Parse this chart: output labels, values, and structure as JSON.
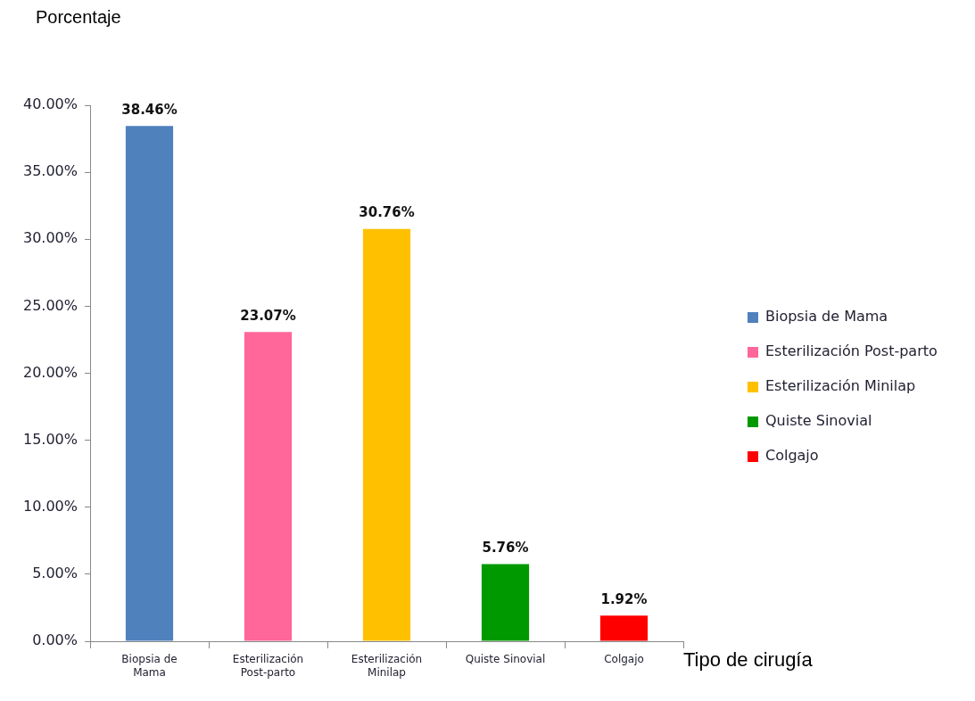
{
  "chart_data": {
    "type": "bar",
    "ylabel": "Porcentaje",
    "xlabel": "Tipo de cirugía",
    "categories": [
      "Biopsia de Mama",
      "Esterilización Post-parto",
      "Esterilización Minilap",
      "Quiste Sinovial",
      "Colgajo"
    ],
    "series": [
      {
        "name": "Biopsia de Mama",
        "color": "#4f81bd",
        "values": [
          38.46,
          null,
          null,
          null,
          null
        ],
        "value_labels": [
          "38.46%",
          null,
          null,
          null,
          null
        ]
      },
      {
        "name": "Esterilización Post-parto",
        "color": "#ff6699",
        "values": [
          null,
          23.07,
          null,
          null,
          null
        ],
        "value_labels": [
          null,
          "23.07%",
          null,
          null,
          null
        ]
      },
      {
        "name": "Esterilización Minilap",
        "color": "#ffc000",
        "values": [
          null,
          null,
          30.76,
          null,
          null
        ],
        "value_labels": [
          null,
          null,
          "30.76%",
          null,
          null
        ]
      },
      {
        "name": "Quiste Sinovial",
        "color": "#009900",
        "values": [
          null,
          null,
          null,
          5.76,
          null
        ],
        "value_labels": [
          null,
          null,
          null,
          "5.76%",
          null
        ]
      },
      {
        "name": "Colgajo",
        "color": "#ff0000",
        "values": [
          null,
          null,
          null,
          null,
          1.92
        ],
        "value_labels": [
          null,
          null,
          null,
          null,
          "1.92%"
        ]
      }
    ],
    "ylim": [
      0,
      40
    ],
    "yticks": [
      {
        "value": 0,
        "label": "0.00%"
      },
      {
        "value": 5,
        "label": "5.00%"
      },
      {
        "value": 10,
        "label": "10.00%"
      },
      {
        "value": 15,
        "label": "15.00%"
      },
      {
        "value": 20,
        "label": "20.00%"
      },
      {
        "value": 25,
        "label": "25.00%"
      },
      {
        "value": 30,
        "label": "30.00%"
      },
      {
        "value": 35,
        "label": "35.00%"
      },
      {
        "value": 40,
        "label": "40.00%"
      }
    ],
    "grid": false,
    "legend": "right"
  }
}
